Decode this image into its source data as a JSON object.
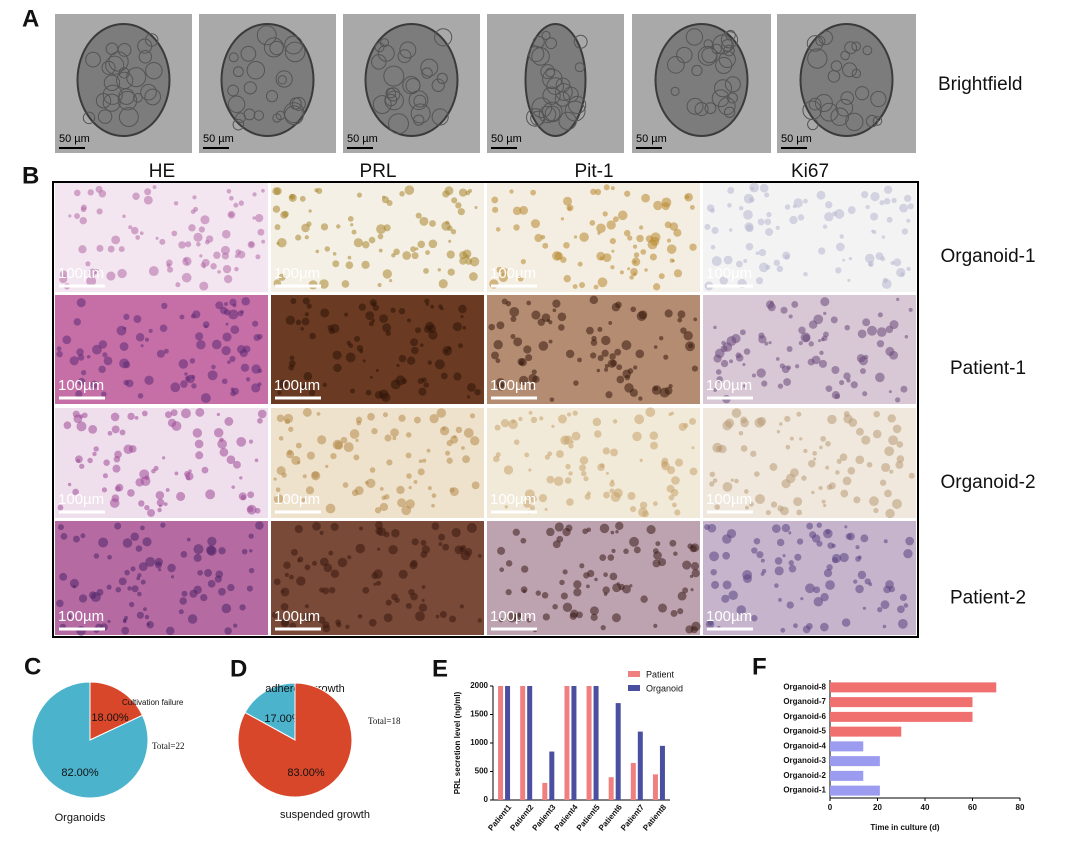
{
  "panels": {
    "a": "A",
    "b": "B",
    "c": "C",
    "d": "D",
    "e": "E",
    "f": "F"
  },
  "brightfield": {
    "label": "Brightfield",
    "scale_label": "50 µm",
    "count": 6
  },
  "microscopy": {
    "columns": [
      "HE",
      "PRL",
      "Pit-1",
      "Ki67"
    ],
    "rows": [
      "Organoid-1",
      "Patient-1",
      "Organoid-2",
      "Patient-2"
    ],
    "scale_label": "100µm"
  },
  "chart_data": [
    {
      "type": "pie",
      "categories": [
        "Cultivation failure",
        "Organoids"
      ],
      "values": [
        18,
        82
      ],
      "value_labels": [
        "18.00%",
        "82.00%"
      ],
      "colors": [
        "#d9472b",
        "#4bb3cc"
      ],
      "annotation": "Total=22"
    },
    {
      "type": "pie",
      "categories": [
        "adherent growth",
        "suspended growth"
      ],
      "values": [
        17,
        83
      ],
      "value_labels": [
        "17.00%",
        "83.00%"
      ],
      "colors": [
        "#4bb3cc",
        "#d9472b"
      ],
      "annotation": "Total=18"
    },
    {
      "type": "bar",
      "ylabel": "PRL secretion level (ng/ml)",
      "categories": [
        "Patient1",
        "Patient2",
        "Patient3",
        "Patient4",
        "Patient5",
        "Patient6",
        "Patient7",
        "Patient8"
      ],
      "series": [
        {
          "name": "Patient",
          "color": "#f08080",
          "values": [
            2000,
            2000,
            300,
            2000,
            2000,
            400,
            650,
            450
          ]
        },
        {
          "name": "Organoid",
          "color": "#4a4fa0",
          "values": [
            2000,
            2000,
            850,
            2000,
            2000,
            1700,
            1200,
            950
          ]
        }
      ],
      "ylim": [
        0,
        2000
      ],
      "yticks": [
        0,
        500,
        1000,
        1500,
        2000
      ]
    },
    {
      "type": "hbar",
      "xlabel": "Time in culture (d)",
      "categories": [
        "Organoid-8",
        "Organoid-7",
        "Organoid-6",
        "Organoid-5",
        "Organoid-4",
        "Organoid-3",
        "Organoid-2",
        "Organoid-1"
      ],
      "values": [
        70,
        60,
        60,
        30,
        14,
        21,
        14,
        21
      ],
      "colors": [
        "#f07070",
        "#f07070",
        "#f07070",
        "#f07070",
        "#9b9bf0",
        "#9b9bf0",
        "#9b9bf0",
        "#9b9bf0"
      ],
      "xlim": [
        0,
        80
      ],
      "xticks": [
        0,
        20,
        40,
        60,
        80
      ]
    }
  ]
}
